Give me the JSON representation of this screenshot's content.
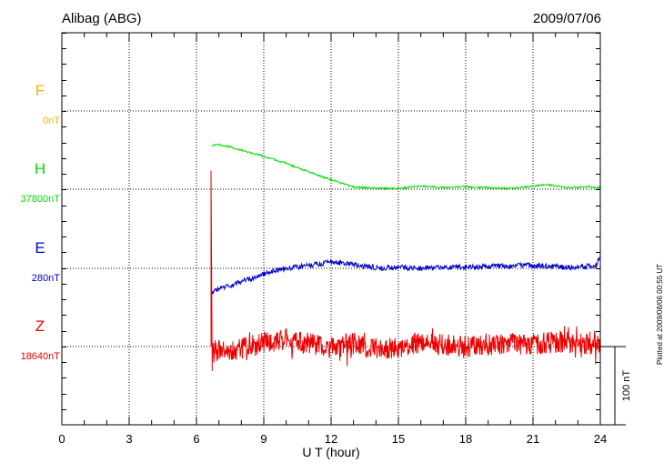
{
  "header": {
    "station": "Alibag (ABG)",
    "date": "2009/07/06"
  },
  "components": [
    {
      "letter": "F",
      "baseline": "0nT",
      "color": "#ffb000"
    },
    {
      "letter": "H",
      "baseline": "37800nT",
      "color": "#00dd00"
    },
    {
      "letter": "E",
      "baseline": "280nT",
      "color": "#0000cc"
    },
    {
      "letter": "Z",
      "baseline": "18640nT",
      "color": "#ee0000"
    }
  ],
  "scale_label": "100 nT",
  "plotted_note": "Plotted at 2009/08/06 00:55 UT",
  "chart_data": {
    "type": "line",
    "title": "Alibag (ABG)",
    "subtitle": "2009/07/06",
    "xlabel": "U T (hour)",
    "ylabel": "",
    "xlim": [
      0,
      24
    ],
    "x_ticks": [
      "0",
      "3",
      "6",
      "9",
      "12",
      "15",
      "18",
      "21",
      "24"
    ],
    "scale_bar_nT": 100,
    "grid": true,
    "series": [
      {
        "name": "F",
        "baseline_nT": 0,
        "color": "#ffb000",
        "data_start_hour": null,
        "points": []
      },
      {
        "name": "H",
        "baseline_nT": 37800,
        "color": "#00dd00",
        "data_start_hour": 6.7,
        "points": [
          [
            6.7,
            56
          ],
          [
            7.0,
            57
          ],
          [
            7.5,
            54
          ],
          [
            8.0,
            50
          ],
          [
            9.0,
            42
          ],
          [
            10.0,
            33
          ],
          [
            11.0,
            22
          ],
          [
            12.0,
            12
          ],
          [
            13.0,
            3
          ],
          [
            14.0,
            1
          ],
          [
            15.0,
            1
          ],
          [
            16.0,
            4
          ],
          [
            17.0,
            2
          ],
          [
            18.0,
            3
          ],
          [
            19.0,
            2
          ],
          [
            20.0,
            1
          ],
          [
            21.0,
            4
          ],
          [
            21.6,
            6
          ],
          [
            22.5,
            2
          ],
          [
            23.5,
            3
          ],
          [
            24.0,
            2
          ]
        ]
      },
      {
        "name": "E",
        "baseline_nT": 280,
        "color": "#0000cc",
        "data_start_hour": 6.7,
        "points": [
          [
            6.7,
            -30
          ],
          [
            7.5,
            -22
          ],
          [
            8.5,
            -12
          ],
          [
            9.5,
            -2
          ],
          [
            10.5,
            2
          ],
          [
            11.5,
            6
          ],
          [
            12.0,
            8
          ],
          [
            13.0,
            5
          ],
          [
            14.0,
            1
          ],
          [
            15.0,
            1
          ],
          [
            16.0,
            0
          ],
          [
            17.0,
            2
          ],
          [
            18.0,
            1
          ],
          [
            19.0,
            2
          ],
          [
            20.0,
            3
          ],
          [
            21.0,
            4
          ],
          [
            22.0,
            2
          ],
          [
            23.0,
            1
          ],
          [
            23.8,
            4
          ],
          [
            24.0,
            16
          ]
        ]
      },
      {
        "name": "Z",
        "baseline_nT": 18640,
        "color": "#ee0000",
        "data_start_hour": 6.65,
        "spike": {
          "hour": 6.65,
          "value_nT": 225
        },
        "points": [
          [
            6.7,
            -8
          ],
          [
            7.0,
            -5
          ],
          [
            8.0,
            -3
          ],
          [
            9.0,
            5
          ],
          [
            10.0,
            10
          ],
          [
            11.0,
            4
          ],
          [
            12.0,
            -2
          ],
          [
            13.0,
            4
          ],
          [
            14.0,
            -4
          ],
          [
            15.0,
            0
          ],
          [
            16.0,
            6
          ],
          [
            17.0,
            2
          ],
          [
            18.0,
            0
          ],
          [
            19.0,
            3
          ],
          [
            20.0,
            4
          ],
          [
            21.0,
            3
          ],
          [
            22.0,
            6
          ],
          [
            23.0,
            5
          ],
          [
            24.0,
            2
          ]
        ]
      }
    ]
  }
}
